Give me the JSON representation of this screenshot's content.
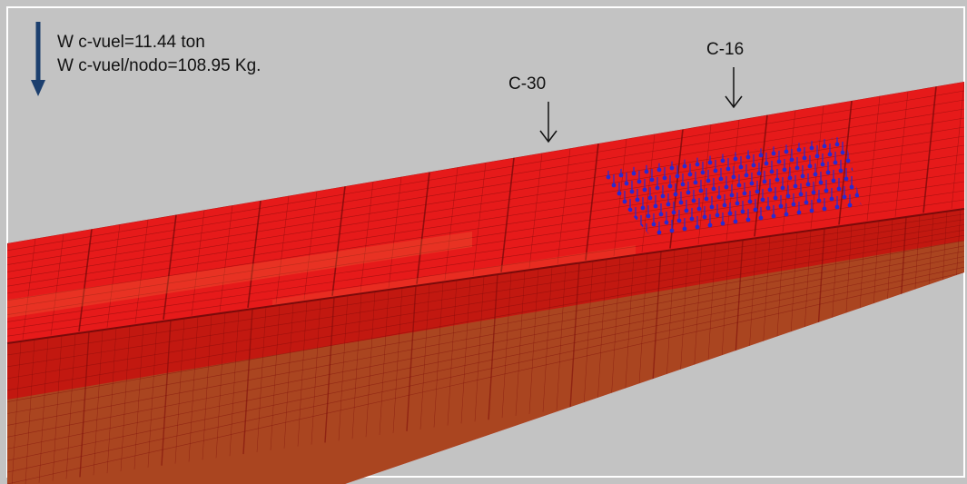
{
  "colors": {
    "background": "#c3c3c3",
    "frame_border": "#ffffff",
    "hull_fill": "#e61a1a",
    "hull_side": "#c21810",
    "hull_bottom": "#8e7d36",
    "hull_edge": "#7a0a0a",
    "hull_highlight": "#f07a40",
    "load_marker": "#2a2ad0",
    "load_arrow": "#1c3f6e",
    "section_arrow": "#111111"
  },
  "legend": {
    "icon": "down-arrow-icon",
    "line1": "W c-vuel=11.44 ton",
    "line2": "W c-vuel/nodo=108.95 Kg."
  },
  "sections": [
    {
      "label": "C-30",
      "icon": "down-arrow-icon"
    },
    {
      "label": "C-16",
      "icon": "down-arrow-icon"
    }
  ],
  "model": {
    "type": "3d-fem-mesh",
    "load_marker_icon": "nodal-load-arrow-icon"
  }
}
